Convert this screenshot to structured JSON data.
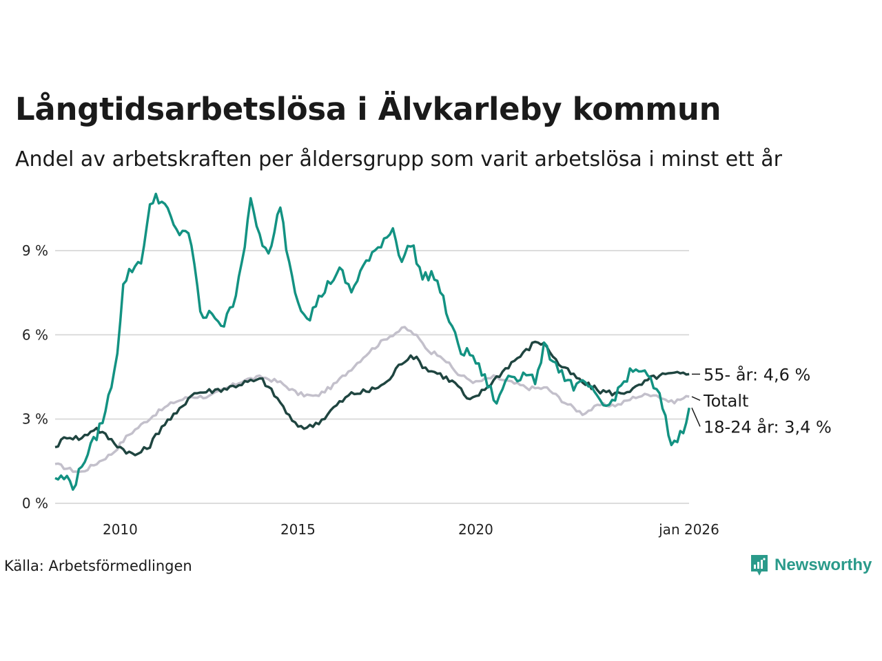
{
  "title": "Långtidsarbetslösa i Älvkarleby kommun",
  "subtitle": "Andel av arbetskraften per åldersgrupp som varit arbetslösa i minst ett år",
  "source": "Källa: Arbetsförmedlingen",
  "brand": {
    "name": "Newsworthy",
    "icon": "newsworthy-logo-icon",
    "color": "#2a9a8a"
  },
  "chart_data": {
    "type": "line",
    "x_start": 2008.17,
    "x_end": 2026.0,
    "xlim": [
      2008.17,
      2026.0
    ],
    "ylim": [
      0,
      11.5
    ],
    "y_ticks": [
      {
        "value": 0,
        "label": "0 %"
      },
      {
        "value": 3,
        "label": "3 %"
      },
      {
        "value": 6,
        "label": "6 %"
      },
      {
        "value": 9,
        "label": "9 %"
      }
    ],
    "x_ticks": [
      {
        "value": 2010,
        "label": "2010"
      },
      {
        "value": 2015,
        "label": "2015"
      },
      {
        "value": 2020,
        "label": "2020"
      },
      {
        "value": 2026,
        "label": "jan 2026"
      }
    ],
    "grid": true,
    "series": [
      {
        "name": "Totalt",
        "end_label": "Totalt",
        "color": "#c3c0cb",
        "anchors": [
          [
            2008.17,
            1.4
          ],
          [
            2008.6,
            1.2
          ],
          [
            2008.9,
            1.1
          ],
          [
            2009.3,
            1.4
          ],
          [
            2009.8,
            1.8
          ],
          [
            2010.2,
            2.4
          ],
          [
            2010.6,
            2.8
          ],
          [
            2011.0,
            3.2
          ],
          [
            2011.5,
            3.6
          ],
          [
            2012.0,
            3.8
          ],
          [
            2012.5,
            3.8
          ],
          [
            2013.0,
            4.1
          ],
          [
            2013.5,
            4.4
          ],
          [
            2014.0,
            4.5
          ],
          [
            2014.5,
            4.3
          ],
          [
            2015.0,
            3.9
          ],
          [
            2015.5,
            3.8
          ],
          [
            2016.0,
            4.2
          ],
          [
            2016.5,
            4.8
          ],
          [
            2017.0,
            5.4
          ],
          [
            2017.5,
            5.9
          ],
          [
            2018.0,
            6.25
          ],
          [
            2018.3,
            6.0
          ],
          [
            2018.7,
            5.4
          ],
          [
            2019.0,
            5.3
          ],
          [
            2019.5,
            4.6
          ],
          [
            2020.0,
            4.3
          ],
          [
            2020.5,
            4.5
          ],
          [
            2021.0,
            4.3
          ],
          [
            2021.5,
            4.1
          ],
          [
            2022.0,
            4.1
          ],
          [
            2022.5,
            3.6
          ],
          [
            2023.0,
            3.2
          ],
          [
            2023.5,
            3.5
          ],
          [
            2024.0,
            3.5
          ],
          [
            2024.5,
            3.8
          ],
          [
            2025.0,
            3.9
          ],
          [
            2025.5,
            3.6
          ],
          [
            2026.0,
            3.8
          ]
        ],
        "noise": 0.07
      },
      {
        "name": "55- år",
        "end_label": "55- år: 4,6 %",
        "color": "#1f4540",
        "anchors": [
          [
            2008.17,
            2.0
          ],
          [
            2008.5,
            2.4
          ],
          [
            2008.9,
            2.3
          ],
          [
            2009.3,
            2.7
          ],
          [
            2009.7,
            2.3
          ],
          [
            2010.0,
            2.0
          ],
          [
            2010.4,
            1.7
          ],
          [
            2010.8,
            2.0
          ],
          [
            2011.2,
            2.8
          ],
          [
            2011.6,
            3.2
          ],
          [
            2012.0,
            3.9
          ],
          [
            2012.5,
            4.0
          ],
          [
            2013.0,
            4.1
          ],
          [
            2013.5,
            4.3
          ],
          [
            2014.0,
            4.4
          ],
          [
            2014.5,
            3.6
          ],
          [
            2014.9,
            2.8
          ],
          [
            2015.3,
            2.7
          ],
          [
            2015.7,
            3.0
          ],
          [
            2016.0,
            3.4
          ],
          [
            2016.5,
            3.9
          ],
          [
            2017.0,
            4.0
          ],
          [
            2017.5,
            4.3
          ],
          [
            2017.9,
            5.0
          ],
          [
            2018.2,
            5.3
          ],
          [
            2018.6,
            4.8
          ],
          [
            2019.0,
            4.6
          ],
          [
            2019.5,
            4.2
          ],
          [
            2019.8,
            3.6
          ],
          [
            2020.2,
            4.0
          ],
          [
            2020.6,
            4.5
          ],
          [
            2021.0,
            5.0
          ],
          [
            2021.4,
            5.4
          ],
          [
            2021.7,
            5.8
          ],
          [
            2022.0,
            5.6
          ],
          [
            2022.3,
            5.0
          ],
          [
            2022.7,
            4.6
          ],
          [
            2023.0,
            4.3
          ],
          [
            2023.5,
            4.0
          ],
          [
            2024.0,
            3.9
          ],
          [
            2024.5,
            4.1
          ],
          [
            2025.0,
            4.5
          ],
          [
            2025.5,
            4.6
          ],
          [
            2026.0,
            4.6
          ]
        ],
        "noise": 0.1
      },
      {
        "name": "18-24 år",
        "end_label": "18-24 år: 3,4 %",
        "color": "#139282",
        "anchors": [
          [
            2008.17,
            0.9
          ],
          [
            2008.5,
            0.9
          ],
          [
            2008.7,
            0.6
          ],
          [
            2009.0,
            1.6
          ],
          [
            2009.3,
            2.3
          ],
          [
            2009.6,
            3.3
          ],
          [
            2009.9,
            5.2
          ],
          [
            2010.1,
            7.9
          ],
          [
            2010.3,
            8.3
          ],
          [
            2010.6,
            8.7
          ],
          [
            2010.85,
            10.6
          ],
          [
            2011.0,
            11.0
          ],
          [
            2011.3,
            10.5
          ],
          [
            2011.6,
            9.6
          ],
          [
            2011.9,
            9.8
          ],
          [
            2012.1,
            8.3
          ],
          [
            2012.3,
            6.5
          ],
          [
            2012.6,
            6.8
          ],
          [
            2012.9,
            6.3
          ],
          [
            2013.2,
            7.2
          ],
          [
            2013.5,
            9.2
          ],
          [
            2013.65,
            10.8
          ],
          [
            2013.9,
            9.6
          ],
          [
            2014.2,
            8.7
          ],
          [
            2014.5,
            10.7
          ],
          [
            2014.7,
            8.9
          ],
          [
            2015.0,
            7.2
          ],
          [
            2015.3,
            6.6
          ],
          [
            2015.6,
            7.3
          ],
          [
            2015.9,
            7.9
          ],
          [
            2016.2,
            8.3
          ],
          [
            2016.5,
            7.5
          ],
          [
            2016.8,
            8.4
          ],
          [
            2017.1,
            8.8
          ],
          [
            2017.4,
            9.4
          ],
          [
            2017.7,
            9.8
          ],
          [
            2017.9,
            8.6
          ],
          [
            2018.2,
            9.3
          ],
          [
            2018.5,
            8.0
          ],
          [
            2018.8,
            8.2
          ],
          [
            2019.0,
            7.6
          ],
          [
            2019.3,
            6.3
          ],
          [
            2019.6,
            5.4
          ],
          [
            2019.9,
            5.3
          ],
          [
            2020.1,
            4.8
          ],
          [
            2020.4,
            4.1
          ],
          [
            2020.6,
            3.5
          ],
          [
            2020.9,
            4.6
          ],
          [
            2021.2,
            4.5
          ],
          [
            2021.5,
            4.7
          ],
          [
            2021.7,
            4.2
          ],
          [
            2021.9,
            5.6
          ],
          [
            2022.2,
            5.1
          ],
          [
            2022.5,
            4.5
          ],
          [
            2022.8,
            4.1
          ],
          [
            2023.1,
            4.3
          ],
          [
            2023.4,
            3.7
          ],
          [
            2023.7,
            3.4
          ],
          [
            2024.0,
            4.0
          ],
          [
            2024.3,
            4.6
          ],
          [
            2024.6,
            4.8
          ],
          [
            2024.9,
            4.4
          ],
          [
            2025.2,
            3.7
          ],
          [
            2025.5,
            2.1
          ],
          [
            2025.8,
            2.5
          ],
          [
            2026.0,
            3.4
          ]
        ],
        "noise": 0.18
      }
    ]
  }
}
